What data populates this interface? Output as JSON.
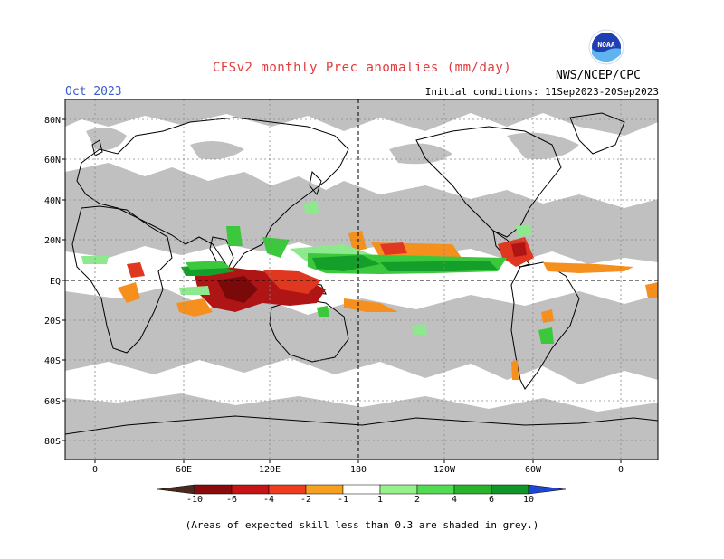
{
  "header": {
    "title": "CFSv2 monthly Prec anomalies (mm/day)",
    "month": "Oct 2023",
    "initial_conditions": "Initial conditions: 11Sep2023-20Sep2023",
    "agency": "NWS/NCEP/CPC",
    "logo_text": "NOAA"
  },
  "map": {
    "lat_labels": [
      "80N",
      "60N",
      "40N",
      "20N",
      "EQ",
      "20S",
      "40S",
      "60S",
      "80S"
    ],
    "lon_labels": [
      "0",
      "60E",
      "120E",
      "180",
      "120W",
      "60W",
      "0"
    ],
    "colors": {
      "skill_mask": "#c0c0c0",
      "background": "#ffffff",
      "dry_strong": "#b01515",
      "dry_moderate": "#e03820",
      "dry_weak": "#f5901e",
      "wet_weak": "#8ee88e",
      "wet_moderate": "#3cc83c",
      "wet_strong": "#139f2a"
    }
  },
  "colorbar": {
    "tick_labels": [
      "-10",
      "-6",
      "-4",
      "-2",
      "-1",
      "1",
      "2",
      "4",
      "6",
      "10"
    ],
    "colors": [
      "#4a2a1e",
      "#8b0a0a",
      "#c81414",
      "#f03c1e",
      "#f5a01e",
      "#ffffff",
      "#96f08c",
      "#50dc50",
      "#28b428",
      "#0f9628",
      "#1e46d2"
    ]
  },
  "footnote": "(Areas of expected skill less than 0.3 are shaded in grey.)"
}
